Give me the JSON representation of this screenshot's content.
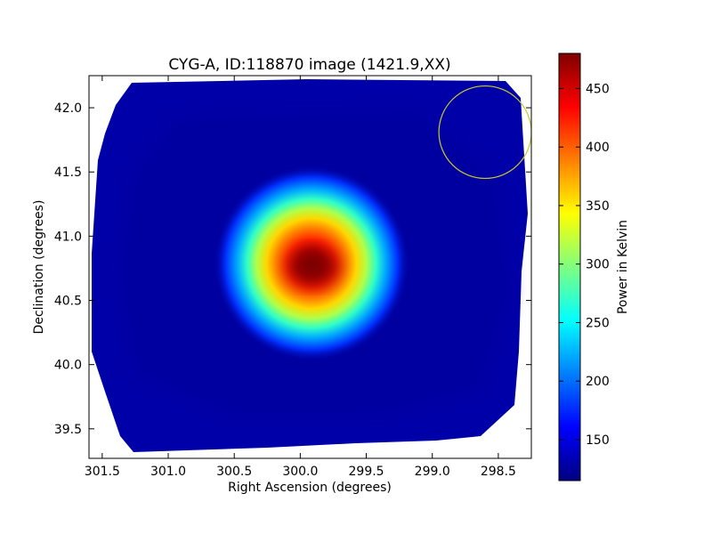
{
  "chart_data": {
    "type": "heatmap",
    "title": "CYG-A, ID:118870 image (1421.9,XX)",
    "xlabel": "Right Ascension (degrees)",
    "ylabel": "Declination (degrees)",
    "xlim": [
      301.6,
      298.25
    ],
    "ylim": [
      39.27,
      42.25
    ],
    "xticks": [
      301.5,
      301.0,
      300.5,
      300.0,
      299.5,
      299.0,
      298.5
    ],
    "xtick_labels": [
      "301.5",
      "301.0",
      "300.5",
      "300.0",
      "299.5",
      "299.0",
      "298.5"
    ],
    "yticks": [
      39.5,
      40.0,
      40.5,
      41.0,
      41.5,
      42.0
    ],
    "ytick_labels": [
      "39.5",
      "40.0",
      "40.5",
      "41.0",
      "41.5",
      "42.0"
    ],
    "colormap": "jet",
    "colorbar": {
      "label": "Power in Kelvin",
      "range": [
        115,
        480
      ],
      "ticks": [
        150,
        200,
        250,
        300,
        350,
        400,
        450
      ],
      "tick_labels": [
        "150",
        "200",
        "250",
        "300",
        "350",
        "400",
        "450"
      ]
    },
    "background_level": 130,
    "source": {
      "ra": 299.87,
      "dec": 40.74,
      "peak": 480
    },
    "beam_circle": {
      "ra": 298.6,
      "dec": 41.81,
      "radius_deg": 0.36,
      "color": "#c8c832"
    },
    "grid": false,
    "legend": "none"
  }
}
